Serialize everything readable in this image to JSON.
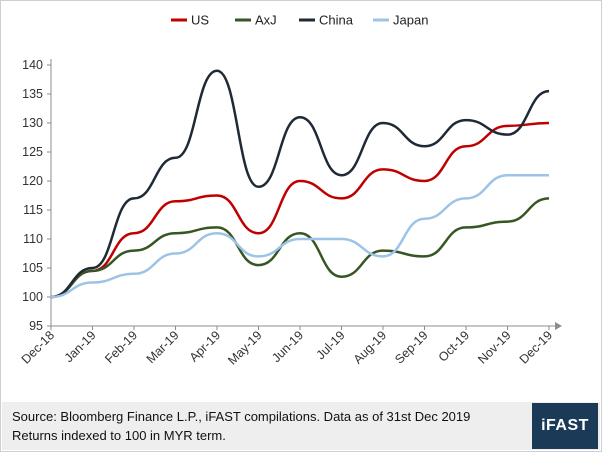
{
  "chart_data": {
    "type": "line",
    "x": [
      "Dec-18",
      "Jan-19",
      "Feb-19",
      "Mar-19",
      "Apr-19",
      "May-19",
      "Jun-19",
      "Jul-19",
      "Aug-19",
      "Sep-19",
      "Oct-19",
      "Nov-19",
      "Dec-19"
    ],
    "xticks": [
      "Dec-18",
      "Jan-19",
      "Feb-19",
      "Mar-19",
      "Apr-19",
      "May-19",
      "Jun-19",
      "Jul-19",
      "Aug-19",
      "Sep-19",
      "Oct-19",
      "Nov-19",
      "Dec-19"
    ],
    "yticks": [
      95,
      100,
      105,
      110,
      115,
      120,
      125,
      130,
      135,
      140
    ],
    "ylim": [
      95,
      140
    ],
    "grid": false,
    "legend_position": "top",
    "series": [
      {
        "name": "US",
        "color": "#c00000",
        "values": [
          100,
          104.5,
          111,
          116.5,
          117.5,
          111,
          120,
          117,
          122,
          120,
          126,
          129.5,
          130
        ]
      },
      {
        "name": "AxJ",
        "color": "#375623",
        "values": [
          100,
          104.5,
          108,
          111,
          112,
          105.5,
          111,
          103.5,
          108,
          107,
          112,
          113,
          117
        ]
      },
      {
        "name": "China",
        "color": "#1f2a36",
        "values": [
          100,
          105,
          117,
          124,
          139,
          119,
          131,
          121,
          130,
          126,
          130.5,
          128,
          135.5
        ]
      },
      {
        "name": "Japan",
        "color": "#9dc3e6",
        "values": [
          100,
          102.5,
          104,
          107.5,
          111,
          107,
          110,
          110,
          107,
          113.5,
          117,
          121,
          121
        ]
      }
    ]
  },
  "footer": {
    "source_line": "Source: Bloomberg Finance L.P., iFAST compilations. Data as of 31st Dec 2019",
    "note_line": "Returns indexed to 100 in MYR term.",
    "logo_text": "iFAST",
    "logo_bg": "#1a3a57"
  }
}
